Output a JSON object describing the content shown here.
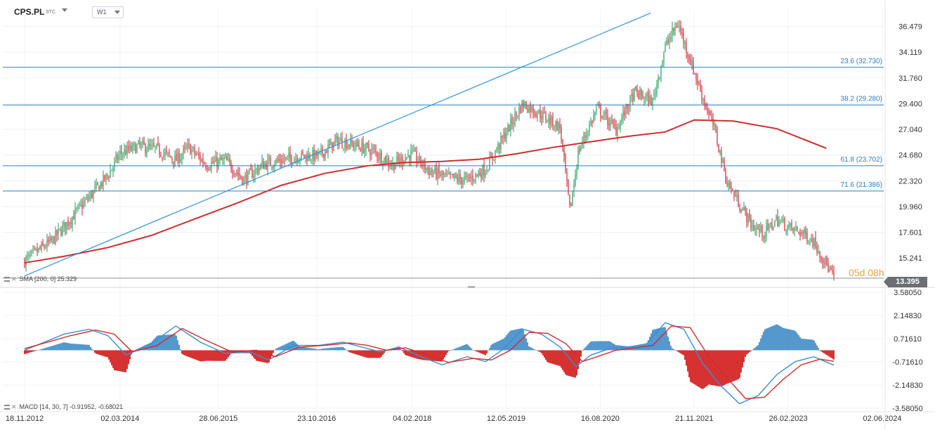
{
  "header": {
    "symbol": "CPS.PL",
    "exchange": "STC",
    "timeframe": "W1"
  },
  "indicators": {
    "sma_label": "SMA [200, 0] 25.329",
    "macd_label": "MACD [14, 30, 7] -0.91952, -0.68021"
  },
  "countdown": "05d 08h",
  "last_price": "13.395",
  "colors": {
    "up_candle": "#1f9d55",
    "down_candle": "#d21f2b",
    "sma": "#cf2e2e",
    "fib_line": "#2a7fc1",
    "trend_line": "#2d95e6",
    "macd_line": "#3a8fd6",
    "signal_line": "#d42a2a",
    "hist_pos": "#2a7fc1",
    "hist_neg": "#cc0000"
  },
  "chart_data": [
    {
      "type": "candlestick",
      "title": "",
      "price_axis": {
        "ticks": [
          "36.479",
          "34.119",
          "31.760",
          "29.400",
          "27.040",
          "24.680",
          "22.320",
          "19.960",
          "17.601",
          "15.241"
        ],
        "ylim": [
          13.0,
          38.0
        ]
      },
      "time_axis": {
        "ticks": [
          "18.11.2012",
          "02.03.2014",
          "28.06.2015",
          "23.10.2016",
          "04.02.2018",
          "12.05.2019",
          "16.08.2020",
          "21.11.2021",
          "26.02.2023",
          "02.06.2024"
        ]
      },
      "close_path": {
        "x": [
          "2012-11-18",
          "2013-04-01",
          "2013-08-01",
          "2014-01-01",
          "2014-03-01",
          "2014-06-01",
          "2014-09-01",
          "2014-12-01",
          "2015-02-01",
          "2015-05-01",
          "2015-08-01",
          "2015-11-01",
          "2016-02-01",
          "2016-05-01",
          "2016-08-01",
          "2016-11-01",
          "2017-02-01",
          "2017-05-01",
          "2017-08-01",
          "2017-11-01",
          "2018-02-01",
          "2018-05-01",
          "2018-08-01",
          "2018-11-01",
          "2019-02-01",
          "2019-05-01",
          "2019-08-01",
          "2019-11-01",
          "2020-02-01",
          "2020-03-20",
          "2020-05-01",
          "2020-08-01",
          "2020-11-01",
          "2021-02-01",
          "2021-05-01",
          "2021-07-01",
          "2021-09-01",
          "2021-11-01",
          "2022-01-01",
          "2022-03-01",
          "2022-05-01",
          "2022-07-01",
          "2022-09-01",
          "2022-11-01",
          "2023-01-01",
          "2023-03-01",
          "2023-05-01",
          "2023-07-01",
          "2023-10-08"
        ],
        "y": [
          15.0,
          16.8,
          19.5,
          22.8,
          24.8,
          25.5,
          25.2,
          24.2,
          25.4,
          23.8,
          24.2,
          22.4,
          23.8,
          24.2,
          24.6,
          24.6,
          26.0,
          25.6,
          25.0,
          23.8,
          24.8,
          23.2,
          22.6,
          22.4,
          23.4,
          26.4,
          29.4,
          28.4,
          27.2,
          19.5,
          25.0,
          29.0,
          27.0,
          30.4,
          29.6,
          34.6,
          36.8,
          33.4,
          30.0,
          27.0,
          22.2,
          20.2,
          18.2,
          17.5,
          18.8,
          18.0,
          17.6,
          16.8,
          13.4
        ]
      },
      "sma200": {
        "name": "SMA [200, 0]",
        "x": [
          "2012-11-18",
          "2013-06-01",
          "2014-01-01",
          "2014-08-01",
          "2015-03-01",
          "2015-10-01",
          "2016-05-01",
          "2016-12-01",
          "2017-07-01",
          "2018-01-01",
          "2018-07-01",
          "2019-01-01",
          "2019-07-01",
          "2020-01-01",
          "2020-07-01",
          "2021-01-01",
          "2021-07-01",
          "2021-11-21",
          "2022-06-01",
          "2023-01-01",
          "2023-09-01"
        ],
        "y": [
          14.8,
          15.4,
          16.2,
          17.3,
          18.8,
          20.3,
          21.9,
          23.0,
          23.7,
          24.0,
          24.1,
          24.3,
          24.8,
          25.4,
          25.9,
          26.4,
          26.8,
          27.9,
          27.8,
          27.1,
          25.3
        ]
      },
      "fibonacci": [
        {
          "level": "23.6",
          "price": 32.73,
          "label": "23.6 (32.730)"
        },
        {
          "level": "38.2",
          "price": 29.28,
          "label": "38.2 (29.280)"
        },
        {
          "level": "61.8",
          "price": 23.702,
          "label": "61.8 (23.702)"
        },
        {
          "level": "71.6",
          "price": 21.386,
          "label": "71.6 (21.386)"
        }
      ],
      "trend_line": {
        "x": [
          "2012-11-18",
          "2021-04-20"
        ],
        "y": [
          13.6,
          37.7
        ]
      },
      "last_price": 13.395
    },
    {
      "type": "macd",
      "name": "MACD [14, 30, 7]",
      "values": {
        "macd": -0.91952,
        "signal": -0.68021
      },
      "y_ticks": [
        "3.58050",
        "2.14830",
        "0.71610",
        "-0.71610",
        "-2.14830",
        "-3.58050"
      ],
      "ylim": [
        -3.5805,
        3.5805
      ],
      "macd_line": {
        "x": [
          "2012-11-18",
          "2013-06-01",
          "2013-10-01",
          "2014-01-01",
          "2014-04-01",
          "2014-08-01",
          "2014-12-01",
          "2015-04-01",
          "2015-08-01",
          "2015-12-01",
          "2016-03-01",
          "2016-07-01",
          "2016-11-01",
          "2017-03-01",
          "2017-06-01",
          "2017-09-01",
          "2017-12-01",
          "2018-03-01",
          "2018-07-01",
          "2018-11-01",
          "2019-02-01",
          "2019-05-01",
          "2019-08-01",
          "2019-11-01",
          "2020-02-01",
          "2020-04-20",
          "2020-07-01",
          "2020-10-01",
          "2021-01-01",
          "2021-04-01",
          "2021-07-01",
          "2021-10-01",
          "2022-01-01",
          "2022-04-01",
          "2022-07-01",
          "2022-10-01",
          "2023-01-01",
          "2023-04-01",
          "2023-07-01",
          "2023-10-08"
        ],
        "y": [
          0.0,
          1.0,
          1.3,
          0.9,
          -0.3,
          0.4,
          1.5,
          0.5,
          -0.2,
          -0.1,
          -0.6,
          0.3,
          0.3,
          0.5,
          0.2,
          -0.1,
          0.2,
          -0.3,
          -0.9,
          -0.4,
          -0.7,
          0.1,
          1.3,
          1.0,
          0.2,
          -1.0,
          -0.3,
          0.1,
          0.2,
          0.4,
          1.7,
          1.3,
          -0.8,
          -2.2,
          -3.3,
          -2.8,
          -1.5,
          -0.7,
          -0.4,
          -0.92
        ]
      },
      "signal_line": {
        "x": [
          "2012-11-18",
          "2013-07-01",
          "2013-11-01",
          "2014-02-01",
          "2014-05-01",
          "2014-09-01",
          "2015-01-01",
          "2015-05-01",
          "2015-09-01",
          "2016-01-01",
          "2016-04-01",
          "2016-08-01",
          "2016-12-01",
          "2017-04-01",
          "2017-07-01",
          "2017-10-01",
          "2018-01-01",
          "2018-04-01",
          "2018-08-01",
          "2018-12-01",
          "2019-03-01",
          "2019-06-01",
          "2019-09-01",
          "2019-12-01",
          "2020-03-01",
          "2020-05-20",
          "2020-08-01",
          "2020-11-01",
          "2021-02-01",
          "2021-05-01",
          "2021-08-01",
          "2021-11-01",
          "2022-02-01",
          "2022-05-01",
          "2022-08-01",
          "2022-11-01",
          "2023-02-01",
          "2023-05-01",
          "2023-08-01",
          "2023-10-08"
        ],
        "y": [
          0.1,
          0.9,
          1.25,
          1.0,
          -0.1,
          0.3,
          1.35,
          0.6,
          -0.1,
          0.0,
          -0.4,
          0.2,
          0.3,
          0.45,
          0.3,
          0.0,
          0.15,
          -0.2,
          -0.75,
          -0.5,
          -0.6,
          0.0,
          1.1,
          1.05,
          0.4,
          -0.7,
          -0.4,
          0.0,
          0.15,
          0.3,
          1.5,
          1.4,
          -0.4,
          -1.7,
          -3.0,
          -2.9,
          -1.8,
          -0.9,
          -0.55,
          -0.68
        ]
      }
    }
  ]
}
